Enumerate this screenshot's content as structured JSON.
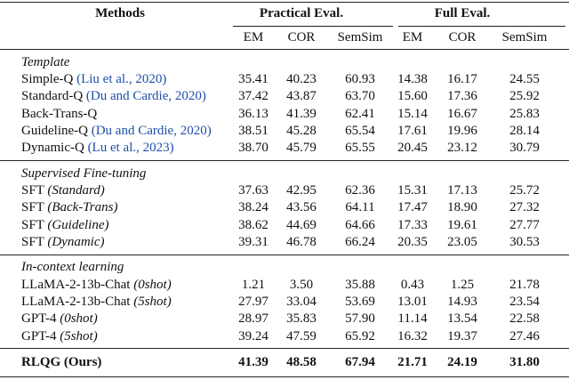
{
  "table": {
    "header": {
      "methods": "Methods",
      "groups": [
        "Practical Eval.",
        "Full Eval."
      ],
      "metrics": [
        "EM",
        "COR",
        "SemSim",
        "EM",
        "COR",
        "SemSim"
      ]
    },
    "sections": [
      {
        "title": "Template",
        "rows": [
          {
            "name": "Simple-Q",
            "cite": "(Liu et al., 2020)",
            "values": [
              "35.41",
              "40.23",
              "60.93",
              "14.38",
              "16.17",
              "24.55"
            ]
          },
          {
            "name": "Standard-Q",
            "cite": "(Du and Cardie, 2020)",
            "values": [
              "37.42",
              "43.87",
              "63.70",
              "15.60",
              "17.36",
              "25.92"
            ]
          },
          {
            "name": "Back-Trans-Q",
            "values": [
              "36.13",
              "41.39",
              "62.41",
              "15.14",
              "16.67",
              "25.83"
            ]
          },
          {
            "name": "Guideline-Q",
            "cite": "(Du and Cardie, 2020)",
            "values": [
              "38.51",
              "45.28",
              "65.54",
              "17.61",
              "19.96",
              "28.14"
            ]
          },
          {
            "name": "Dynamic-Q",
            "cite": "(Lu et al., 2023)",
            "values": [
              "38.70",
              "45.79",
              "65.55",
              "20.45",
              "23.12",
              "30.79"
            ]
          }
        ]
      },
      {
        "title": "Supervised Fine-tuning",
        "rows": [
          {
            "name": "SFT",
            "variant": "(Standard)",
            "values": [
              "37.63",
              "42.95",
              "62.36",
              "15.31",
              "17.13",
              "25.72"
            ]
          },
          {
            "name": "SFT",
            "variant": "(Back-Trans)",
            "values": [
              "38.24",
              "43.56",
              "64.11",
              "17.47",
              "18.90",
              "27.32"
            ]
          },
          {
            "name": "SFT",
            "variant": "(Guideline)",
            "values": [
              "38.62",
              "44.69",
              "64.66",
              "17.33",
              "19.61",
              "27.77"
            ]
          },
          {
            "name": "SFT",
            "variant": "(Dynamic)",
            "values": [
              "39.31",
              "46.78",
              "66.24",
              "20.35",
              "23.05",
              "30.53"
            ]
          }
        ]
      },
      {
        "title": "In-context learning",
        "rows": [
          {
            "name": "LLaMA-2-13b-Chat",
            "variant": "(0shot)",
            "values": [
              "1.21",
              "3.50",
              "35.88",
              "0.43",
              "1.25",
              "21.78"
            ]
          },
          {
            "name": "LLaMA-2-13b-Chat",
            "variant": "(5shot)",
            "values": [
              "27.97",
              "33.04",
              "53.69",
              "13.01",
              "14.93",
              "23.54"
            ]
          },
          {
            "name": "GPT-4",
            "variant": "(0shot)",
            "values": [
              "28.97",
              "35.83",
              "57.90",
              "11.14",
              "13.54",
              "22.58"
            ]
          },
          {
            "name": "GPT-4",
            "variant": "(5shot)",
            "values": [
              "39.24",
              "47.59",
              "65.92",
              "16.32",
              "19.37",
              "27.46"
            ]
          }
        ]
      }
    ],
    "final": {
      "name": "RLQG (Ours)",
      "values": [
        "41.39",
        "48.58",
        "67.94",
        "21.71",
        "24.19",
        "31.80"
      ]
    }
  }
}
